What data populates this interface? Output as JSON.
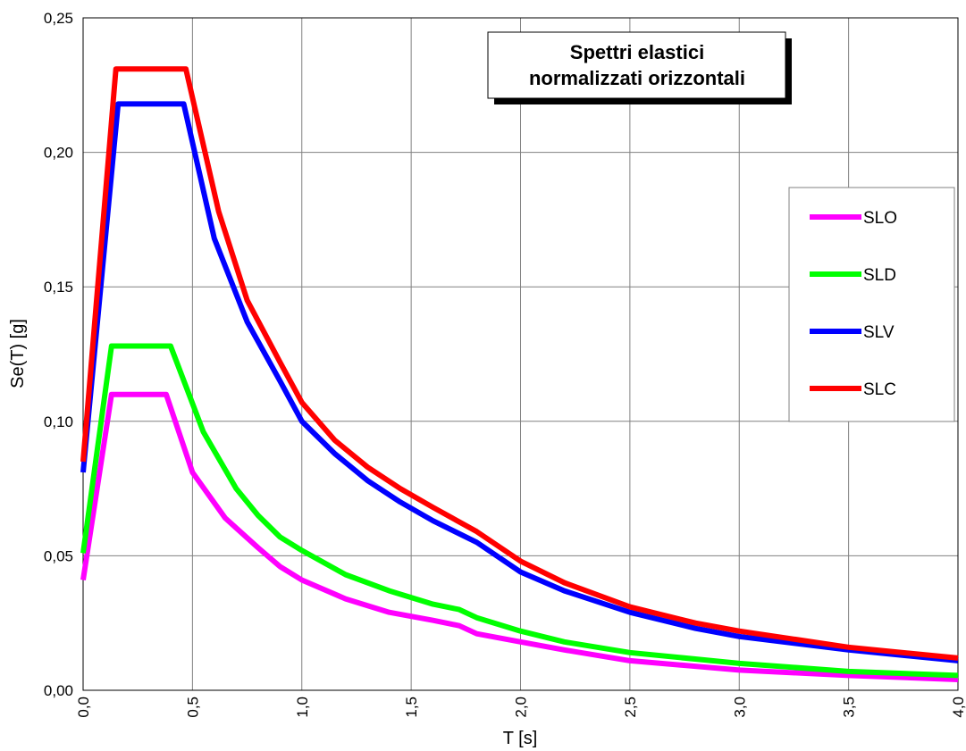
{
  "chart_data": {
    "type": "line",
    "title_lines": [
      "Spettri elastici",
      "normalizzati orizzontali"
    ],
    "xlabel": "T [s]",
    "ylabel": "Se(T) [g]",
    "xlim": [
      0,
      4
    ],
    "ylim": [
      0,
      0.25
    ],
    "grid": true,
    "legend_position": "right",
    "x_ticks": [
      "0,0",
      "0,5",
      "1,0",
      "1,5",
      "2,0",
      "2,5",
      "3,0",
      "3,5",
      "4,0"
    ],
    "y_ticks": [
      "0,00",
      "0,05",
      "0,10",
      "0,15",
      "0,20",
      "0,25"
    ],
    "series": [
      {
        "name": "SLO",
        "color": "#ff00ff",
        "x": [
          0.0,
          0.13,
          0.38,
          0.5,
          0.65,
          0.8,
          0.9,
          1.0,
          1.2,
          1.4,
          1.6,
          1.72,
          1.8,
          2.0,
          2.2,
          2.5,
          3.0,
          3.5,
          4.0
        ],
        "y": [
          0.041,
          0.11,
          0.11,
          0.081,
          0.064,
          0.053,
          0.046,
          0.041,
          0.034,
          0.029,
          0.026,
          0.024,
          0.021,
          0.018,
          0.015,
          0.011,
          0.0075,
          0.0055,
          0.004
        ]
      },
      {
        "name": "SLD",
        "color": "#00ff00",
        "x": [
          0.0,
          0.13,
          0.4,
          0.55,
          0.7,
          0.8,
          0.9,
          1.0,
          1.2,
          1.4,
          1.6,
          1.72,
          1.8,
          2.0,
          2.2,
          2.5,
          3.0,
          3.5,
          4.0
        ],
        "y": [
          0.051,
          0.128,
          0.128,
          0.096,
          0.075,
          0.065,
          0.057,
          0.052,
          0.043,
          0.037,
          0.032,
          0.03,
          0.027,
          0.022,
          0.018,
          0.014,
          0.01,
          0.007,
          0.0055
        ]
      },
      {
        "name": "SLV",
        "color": "#0000ff",
        "x": [
          0.0,
          0.16,
          0.46,
          0.6,
          0.75,
          0.9,
          1.0,
          1.15,
          1.3,
          1.45,
          1.6,
          1.8,
          2.0,
          2.2,
          2.5,
          2.8,
          3.0,
          3.5,
          4.0
        ],
        "y": [
          0.081,
          0.218,
          0.218,
          0.168,
          0.137,
          0.115,
          0.1,
          0.088,
          0.078,
          0.07,
          0.063,
          0.055,
          0.044,
          0.037,
          0.029,
          0.023,
          0.02,
          0.015,
          0.011
        ]
      },
      {
        "name": "SLC",
        "color": "#ff0000",
        "x": [
          0.0,
          0.15,
          0.47,
          0.62,
          0.75,
          0.9,
          1.0,
          1.15,
          1.3,
          1.45,
          1.6,
          1.8,
          2.0,
          2.2,
          2.5,
          2.8,
          3.0,
          3.5,
          4.0
        ],
        "y": [
          0.085,
          0.231,
          0.231,
          0.178,
          0.145,
          0.122,
          0.107,
          0.093,
          0.083,
          0.075,
          0.068,
          0.059,
          0.048,
          0.04,
          0.031,
          0.025,
          0.022,
          0.016,
          0.012
        ]
      }
    ]
  }
}
